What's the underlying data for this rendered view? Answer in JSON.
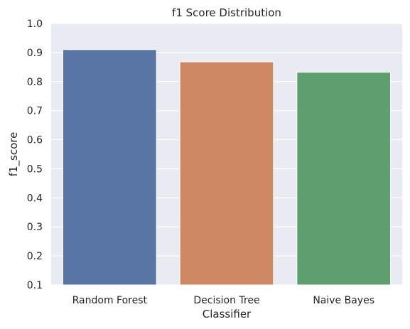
{
  "chart_data": {
    "type": "bar",
    "title": "f1 Score Distribution",
    "xlabel": "Classifier",
    "ylabel": "f1_score",
    "categories": [
      "Random Forest",
      "Decision Tree",
      "Naive Bayes"
    ],
    "values": [
      0.91,
      0.868,
      0.832
    ],
    "ylim": [
      0.1,
      1.0
    ],
    "yticks": [
      "0.1",
      "0.2",
      "0.3",
      "0.4",
      "0.5",
      "0.6",
      "0.7",
      "0.8",
      "0.9",
      "1.0"
    ],
    "grid": true,
    "colors": [
      "#5975a4",
      "#cc8963",
      "#5f9e6e"
    ],
    "background_color": "#eaeaf2"
  }
}
